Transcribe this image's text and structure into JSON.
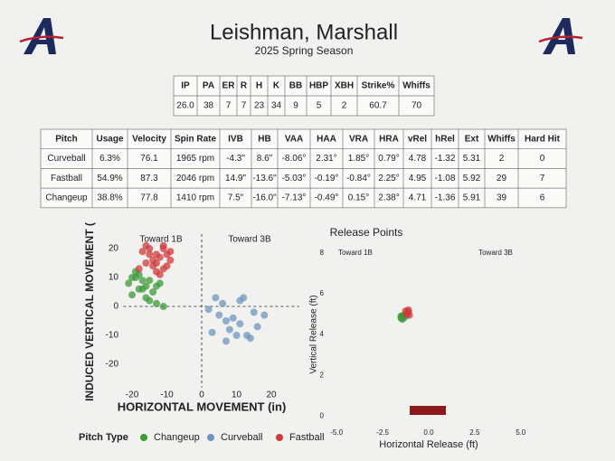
{
  "header": {
    "title": "Leishman, Marshall",
    "subtitle": "2025 Spring Season"
  },
  "summary_table": {
    "columns": [
      "IP",
      "PA",
      "ER",
      "R",
      "H",
      "K",
      "BB",
      "HBP",
      "XBH",
      "Strike%",
      "Whiffs"
    ],
    "rows": [
      [
        "26.0",
        "38",
        "7",
        "7",
        "23",
        "34",
        "9",
        "5",
        "2",
        "60.7",
        "70"
      ]
    ]
  },
  "pitch_table": {
    "columns": [
      "Pitch",
      "Usage",
      "Velocity",
      "Spin Rate",
      "IVB",
      "HB",
      "VAA",
      "HAA",
      "VRA",
      "HRA",
      "vRel",
      "hRel",
      "Ext",
      "Whiffs",
      "Hard Hit"
    ],
    "rows": [
      [
        "Curveball",
        "6.3%",
        "76.1",
        "1965 rpm",
        "-4.3\"",
        "8.6\"",
        "-8.06°",
        "2.31°",
        "1.85°",
        "0.79°",
        "4.78",
        "-1.32",
        "5.31",
        "2",
        "0"
      ],
      [
        "Fastball",
        "54.9%",
        "87.3",
        "2046 rpm",
        "14.9\"",
        "-13.6\"",
        "-5.03°",
        "-0.19°",
        "-0.84°",
        "2.25°",
        "4.95",
        "-1.08",
        "5.92",
        "29",
        "7"
      ],
      [
        "Changeup",
        "38.8%",
        "77.8",
        "1410 rpm",
        "7.5\"",
        "-16.0\"",
        "-7.13°",
        "-0.49°",
        "0.15°",
        "2.38°",
        "4.71",
        "-1.36",
        "5.91",
        "39",
        "6"
      ]
    ]
  },
  "chart_data": [
    {
      "type": "scatter",
      "xlabel": "HORIZONTAL MOVEMENT (in)",
      "ylabel": "INDUCED VERTICAL MOVEMENT (",
      "annotations": [
        "Toward 1B",
        "Toward 3B"
      ],
      "legend_title": "Pitch Type",
      "xlim": [
        -22.5,
        28
      ],
      "ylim": [
        -28,
        25
      ],
      "xticks": [
        -20,
        -10,
        0,
        10,
        20
      ],
      "yticks": [
        -20,
        -10,
        0,
        10,
        20
      ],
      "series": [
        {
          "name": "Changeup",
          "color": "#3f9a3a",
          "x": [
            -21,
            -19,
            -17,
            -15,
            -13,
            -20,
            -18,
            -16,
            -14,
            -12,
            -19,
            -17,
            -15,
            -13,
            -18,
            -16,
            -11,
            -20
          ],
          "values": [
            8,
            10,
            6,
            9,
            7,
            4,
            11,
            3,
            5,
            8,
            12,
            9,
            2,
            1,
            6,
            7,
            0,
            10
          ]
        },
        {
          "name": "Curveball",
          "color": "#6e95bd",
          "x": [
            4,
            6,
            11,
            12,
            5,
            7,
            8,
            10,
            13,
            16,
            18,
            9,
            15,
            11,
            3,
            2,
            14,
            7
          ],
          "values": [
            3,
            1,
            2,
            3,
            -3,
            -5,
            -8,
            -10,
            -10,
            -7,
            -3,
            -4,
            -2,
            -6,
            -9,
            -1,
            -11,
            -12
          ]
        },
        {
          "name": "Fastball",
          "color": "#cf3b3b",
          "x": [
            -17,
            -15,
            -13,
            -11,
            -9,
            -16,
            -14,
            -12,
            -10,
            -18,
            -13,
            -11,
            -15,
            -9,
            -12,
            -14,
            -16,
            -10,
            -13,
            -11
          ],
          "values": [
            19,
            20,
            18,
            21,
            19,
            15,
            16,
            17,
            14,
            13,
            12,
            20,
            18,
            16,
            11,
            14,
            21,
            18,
            15,
            13
          ]
        }
      ]
    },
    {
      "type": "scatter",
      "title": "Release Points",
      "xlabel": "Horizontal Release (ft)",
      "ylabel": "Vertical Release (ft)",
      "annotations": [
        "Toward 1B",
        "Toward 3B"
      ],
      "xlim": [
        -5.5,
        5.7
      ],
      "ylim": [
        -0.3,
        8.35
      ],
      "xticks": [
        {
          "value": -5,
          "label": "-5.0"
        },
        {
          "value": -2.5,
          "label": "-2.5"
        },
        {
          "value": 0,
          "label": "0.0"
        },
        {
          "value": 2.5,
          "label": "2.5"
        },
        {
          "value": 5,
          "label": "5.0"
        }
      ],
      "yticks": [
        0,
        2,
        4,
        6,
        8
      ],
      "series": [
        {
          "color": "#6e95bd",
          "x": [
            -1.3,
            -1.25
          ],
          "values": [
            4.85,
            4.9
          ]
        },
        {
          "color": "#3f9a3a",
          "x": [
            -1.5,
            -1.45,
            -1.4,
            -1.35,
            -1.5,
            -1.42
          ],
          "values": [
            4.8,
            4.9,
            4.85,
            4.95,
            4.9,
            4.75
          ]
        },
        {
          "color": "#cf3b3b",
          "x": [
            -1.2,
            -1.1,
            -1.15,
            -1.05,
            -1.25,
            -1.1
          ],
          "values": [
            5.0,
            5.1,
            5.05,
            4.95,
            5.15,
            5.2
          ]
        }
      ]
    }
  ]
}
